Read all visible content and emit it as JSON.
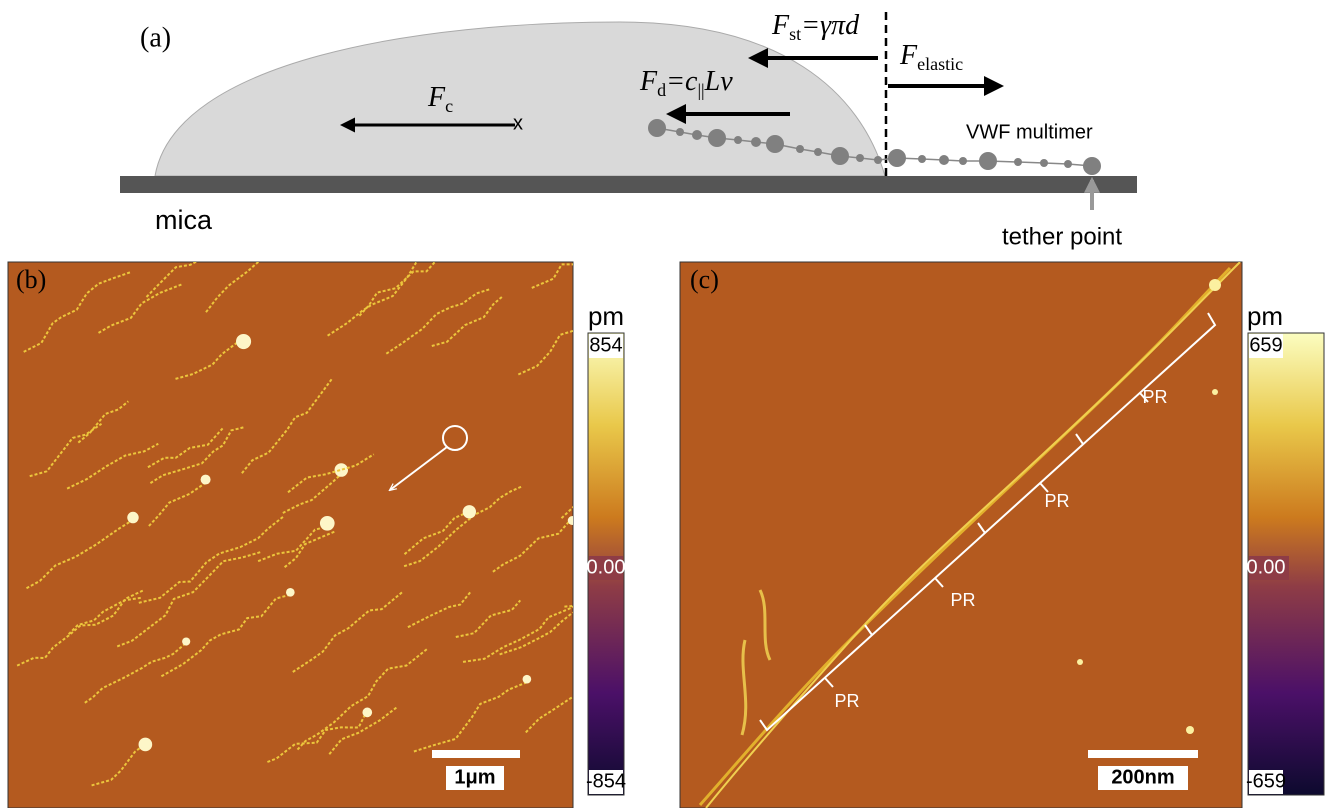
{
  "panel_a": {
    "label": "(a)",
    "f_st": {
      "symbol": "F",
      "subscript": "st",
      "rhs": "=γπd"
    },
    "f_elastic": {
      "symbol": "F",
      "subscript": "elastic"
    },
    "f_d": {
      "symbol": "F",
      "subscript": "d",
      "rhs_1": "=c",
      "rhs_sub": "||",
      "rhs_2": "Lv"
    },
    "f_c": {
      "symbol": "F",
      "subscript": "c"
    },
    "cross": "x",
    "multimer": "VWF multimer",
    "substrate": "mica",
    "tether": "tether point"
  },
  "panel_b": {
    "label": "(b)",
    "unit": "pm",
    "colorbar": {
      "max": "854",
      "mid": "0.00",
      "min": "-854"
    },
    "scale_bar": "1μm"
  },
  "panel_c": {
    "label": "(c)",
    "unit": "pm",
    "colorbar": {
      "max": "659",
      "mid": "0.00",
      "min": "-659"
    },
    "scale_bar": "200nm",
    "repeats": [
      "PR",
      "PR",
      "PR",
      "PR"
    ]
  }
}
